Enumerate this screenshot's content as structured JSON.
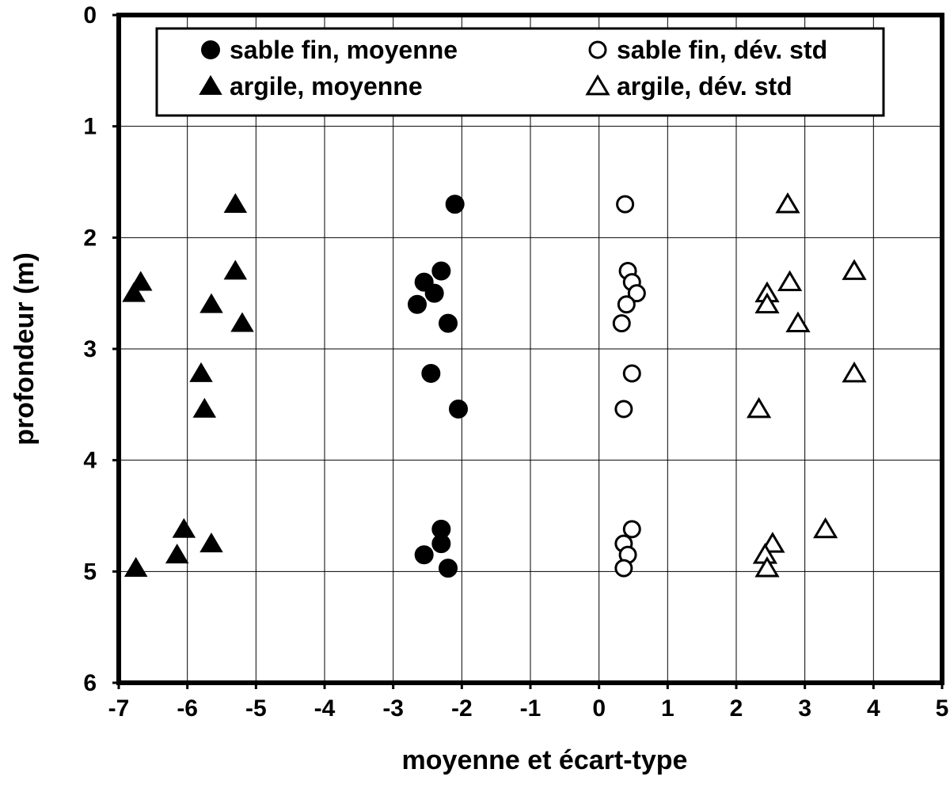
{
  "chart_data": {
    "type": "scatter",
    "xlabel": "moyenne et écart-type",
    "ylabel": "profondeur (m)",
    "xlim": [
      -7,
      5
    ],
    "ylim": [
      0,
      6
    ],
    "y_inverted": true,
    "x_ticks": [
      "-7",
      "-6",
      "-5",
      "-4",
      "-3",
      "-2",
      "-1",
      "0",
      "1",
      "2",
      "3",
      "4",
      "5"
    ],
    "y_ticks": [
      "0",
      "1",
      "2",
      "3",
      "4",
      "5",
      "6"
    ],
    "grid": true,
    "legend_position": "top",
    "series": [
      {
        "name": "sable fin, moyenne",
        "marker": "circle-filled",
        "points": [
          {
            "x": -2.1,
            "y": 1.7
          },
          {
            "x": -2.3,
            "y": 2.3
          },
          {
            "x": -2.55,
            "y": 2.4
          },
          {
            "x": -2.4,
            "y": 2.5
          },
          {
            "x": -2.65,
            "y": 2.6
          },
          {
            "x": -2.2,
            "y": 2.77
          },
          {
            "x": -2.45,
            "y": 3.22
          },
          {
            "x": -2.05,
            "y": 3.54
          },
          {
            "x": -2.3,
            "y": 4.62
          },
          {
            "x": -2.3,
            "y": 4.75
          },
          {
            "x": -2.55,
            "y": 4.85
          },
          {
            "x": -2.2,
            "y": 4.97
          }
        ]
      },
      {
        "name": "sable fin, dév. std",
        "marker": "circle-open",
        "points": [
          {
            "x": 0.38,
            "y": 1.7
          },
          {
            "x": 0.42,
            "y": 2.3
          },
          {
            "x": 0.48,
            "y": 2.4
          },
          {
            "x": 0.55,
            "y": 2.5
          },
          {
            "x": 0.4,
            "y": 2.6
          },
          {
            "x": 0.33,
            "y": 2.77
          },
          {
            "x": 0.48,
            "y": 3.22
          },
          {
            "x": 0.36,
            "y": 3.54
          },
          {
            "x": 0.48,
            "y": 4.62
          },
          {
            "x": 0.36,
            "y": 4.75
          },
          {
            "x": 0.42,
            "y": 4.85
          },
          {
            "x": 0.36,
            "y": 4.97
          }
        ]
      },
      {
        "name": "argile, moyenne",
        "marker": "triangle-filled",
        "points": [
          {
            "x": -5.3,
            "y": 1.7
          },
          {
            "x": -5.3,
            "y": 2.3
          },
          {
            "x": -6.68,
            "y": 2.4
          },
          {
            "x": -6.78,
            "y": 2.5
          },
          {
            "x": -5.65,
            "y": 2.6
          },
          {
            "x": -5.2,
            "y": 2.77
          },
          {
            "x": -5.8,
            "y": 3.22
          },
          {
            "x": -5.75,
            "y": 3.54
          },
          {
            "x": -6.05,
            "y": 4.62
          },
          {
            "x": -5.65,
            "y": 4.75
          },
          {
            "x": -6.15,
            "y": 4.85
          },
          {
            "x": -6.75,
            "y": 4.97
          }
        ]
      },
      {
        "name": "argile, dév. std",
        "marker": "triangle-open",
        "points": [
          {
            "x": 2.75,
            "y": 1.7
          },
          {
            "x": 3.72,
            "y": 2.3
          },
          {
            "x": 2.78,
            "y": 2.4
          },
          {
            "x": 2.45,
            "y": 2.5
          },
          {
            "x": 2.45,
            "y": 2.6
          },
          {
            "x": 2.9,
            "y": 2.77
          },
          {
            "x": 3.72,
            "y": 3.22
          },
          {
            "x": 2.33,
            "y": 3.54
          },
          {
            "x": 3.3,
            "y": 4.62
          },
          {
            "x": 2.53,
            "y": 4.75
          },
          {
            "x": 2.42,
            "y": 4.85
          },
          {
            "x": 2.45,
            "y": 4.97
          }
        ]
      }
    ]
  }
}
